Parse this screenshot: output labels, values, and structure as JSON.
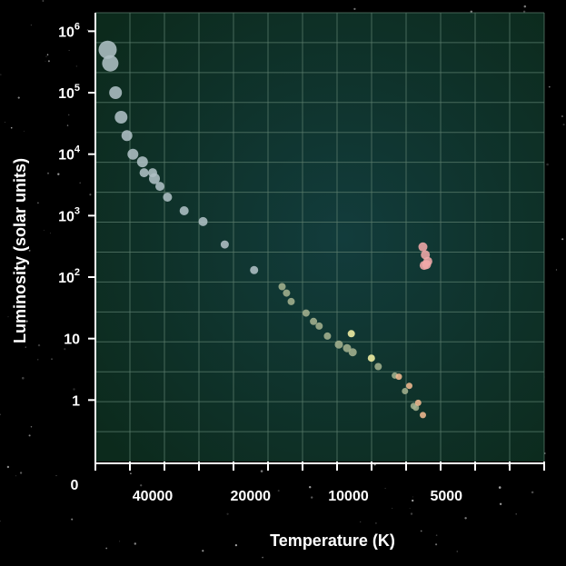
{
  "chart_data": {
    "type": "scatter",
    "title": "",
    "xlabel": "Temperature (K)",
    "ylabel": "Luminosity (solar units)",
    "x_scale": "reverse-log",
    "y_scale": "log",
    "xlim": [
      60000,
      2500
    ],
    "ylim": [
      0.1,
      2000000
    ],
    "grid": true,
    "origin_label": "0",
    "x_ticks": [
      {
        "value": 40000,
        "label": "40000"
      },
      {
        "value": 20000,
        "label": "20000"
      },
      {
        "value": 10000,
        "label": "10000"
      },
      {
        "value": 5000,
        "label": "5000"
      }
    ],
    "y_ticks": [
      {
        "value": 1000000,
        "base": "10",
        "exp": "6"
      },
      {
        "value": 100000,
        "base": "10",
        "exp": "5"
      },
      {
        "value": 10000,
        "base": "10",
        "exp": "4"
      },
      {
        "value": 1000,
        "base": "10",
        "exp": "3"
      },
      {
        "value": 100,
        "base": "10",
        "exp": "2"
      },
      {
        "value": 10,
        "base": "10",
        "exp": ""
      },
      {
        "value": 1,
        "base": "1",
        "exp": ""
      }
    ],
    "colors": {
      "background": "#000000",
      "plot_bg_center": "#123c3c",
      "plot_bg_edge": "#0c2a1c",
      "grid": "#5a7c6c",
      "axis": "#ffffff",
      "blue_star": "#aebfc4",
      "green_star": "#a3b08e",
      "yellow_star": "#f3f0a4",
      "orange_star": "#f0b890",
      "red_giant": "#f0a8a8"
    },
    "series": [
      {
        "color": "#aebfc4",
        "points": [
          {
            "x": 55000,
            "y": 500000,
            "size": 10
          },
          {
            "x": 54000,
            "y": 300000,
            "size": 9
          },
          {
            "x": 52000,
            "y": 100000,
            "size": 7
          },
          {
            "x": 50000,
            "y": 40000,
            "size": 7
          },
          {
            "x": 48000,
            "y": 20000,
            "size": 6
          },
          {
            "x": 46000,
            "y": 10000,
            "size": 6
          },
          {
            "x": 43000,
            "y": 7500,
            "size": 6
          },
          {
            "x": 42500,
            "y": 5000,
            "size": 5
          },
          {
            "x": 40000,
            "y": 5000,
            "size": 5
          },
          {
            "x": 39500,
            "y": 4000,
            "size": 6
          },
          {
            "x": 38000,
            "y": 3000,
            "size": 5
          },
          {
            "x": 36000,
            "y": 2000,
            "size": 5
          },
          {
            "x": 32000,
            "y": 1200,
            "size": 5
          },
          {
            "x": 28000,
            "y": 800,
            "size": 5
          },
          {
            "x": 24000,
            "y": 340,
            "size": 4.5
          },
          {
            "x": 19500,
            "y": 130,
            "size": 4.5
          }
        ]
      },
      {
        "color": "#a3b08e",
        "points": [
          {
            "x": 16000,
            "y": 70,
            "size": 4
          },
          {
            "x": 15500,
            "y": 55,
            "size": 4
          },
          {
            "x": 15000,
            "y": 40,
            "size": 4
          },
          {
            "x": 13500,
            "y": 26,
            "size": 4
          },
          {
            "x": 12800,
            "y": 19,
            "size": 4
          },
          {
            "x": 12300,
            "y": 16,
            "size": 4
          },
          {
            "x": 11600,
            "y": 11,
            "size": 4
          },
          {
            "x": 10700,
            "y": 8,
            "size": 4.5
          },
          {
            "x": 10100,
            "y": 7,
            "size": 4.5
          },
          {
            "x": 9700,
            "y": 6,
            "size": 4.5
          },
          {
            "x": 8100,
            "y": 3.5,
            "size": 4
          },
          {
            "x": 7200,
            "y": 2.5,
            "size": 3.5
          },
          {
            "x": 6700,
            "y": 1.4,
            "size": 3.5
          },
          {
            "x": 6300,
            "y": 0.8,
            "size": 3.5
          },
          {
            "x": 6200,
            "y": 0.75,
            "size": 3.5
          }
        ]
      },
      {
        "color": "#f3f0a4",
        "points": [
          {
            "x": 9800,
            "y": 12,
            "size": 4
          },
          {
            "x": 8500,
            "y": 4.8,
            "size": 4
          }
        ]
      },
      {
        "color": "#f0b890",
        "points": [
          {
            "x": 7000,
            "y": 2.4,
            "size": 3.5
          },
          {
            "x": 6500,
            "y": 1.7,
            "size": 3.5
          },
          {
            "x": 6100,
            "y": 0.9,
            "size": 3.5
          },
          {
            "x": 5900,
            "y": 0.57,
            "size": 3.5
          }
        ]
      },
      {
        "color": "#f0a8a8",
        "points": [
          {
            "x": 5900,
            "y": 310,
            "size": 5
          },
          {
            "x": 5800,
            "y": 230,
            "size": 5
          },
          {
            "x": 5700,
            "y": 180,
            "size": 5
          },
          {
            "x": 5850,
            "y": 155,
            "size": 5
          },
          {
            "x": 5750,
            "y": 160,
            "size": 5
          }
        ]
      }
    ]
  }
}
